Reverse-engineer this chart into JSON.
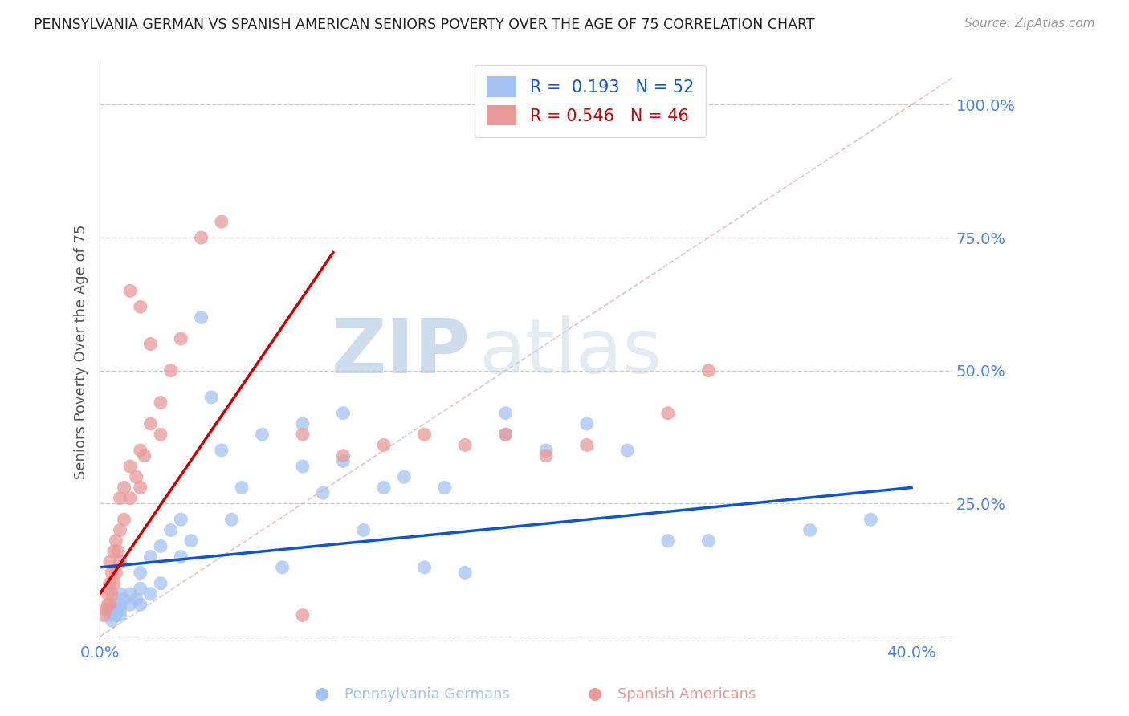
{
  "title": "PENNSYLVANIA GERMAN VS SPANISH AMERICAN SENIORS POVERTY OVER THE AGE OF 75 CORRELATION CHART",
  "source": "Source: ZipAtlas.com",
  "ylabel": "Seniors Poverty Over the Age of 75",
  "xlim": [
    0.0,
    0.42
  ],
  "ylim": [
    -0.01,
    1.08
  ],
  "ytick_vals": [
    0.0,
    0.25,
    0.5,
    0.75,
    1.0
  ],
  "ytick_labels": [
    "",
    "25.0%",
    "50.0%",
    "75.0%",
    "100.0%"
  ],
  "xtick_vals": [
    0.0,
    0.1,
    0.2,
    0.3,
    0.4
  ],
  "xtick_labels": [
    "0.0%",
    "",
    "",
    "",
    "40.0%"
  ],
  "blue_R": "0.193",
  "blue_N": "52",
  "pink_R": "0.546",
  "pink_N": "46",
  "blue_color": "#a4c2f4",
  "pink_color": "#ea9999",
  "blue_line_color": "#1155cc",
  "pink_line_color": "#cc0000",
  "bg_color": "#ffffff",
  "grid_color": "#cccccc",
  "title_color": "#222222",
  "tick_label_color": "#4a86e8",
  "blue_scatter": [
    [
      0.005,
      0.04
    ],
    [
      0.005,
      0.05
    ],
    [
      0.006,
      0.03
    ],
    [
      0.007,
      0.06
    ],
    [
      0.008,
      0.04
    ],
    [
      0.009,
      0.05
    ],
    [
      0.01,
      0.06
    ],
    [
      0.01,
      0.08
    ],
    [
      0.01,
      0.05
    ],
    [
      0.01,
      0.04
    ],
    [
      0.012,
      0.07
    ],
    [
      0.015,
      0.06
    ],
    [
      0.015,
      0.08
    ],
    [
      0.018,
      0.07
    ],
    [
      0.02,
      0.06
    ],
    [
      0.02,
      0.09
    ],
    [
      0.02,
      0.12
    ],
    [
      0.025,
      0.08
    ],
    [
      0.025,
      0.15
    ],
    [
      0.03,
      0.1
    ],
    [
      0.03,
      0.17
    ],
    [
      0.035,
      0.2
    ],
    [
      0.04,
      0.15
    ],
    [
      0.04,
      0.22
    ],
    [
      0.045,
      0.18
    ],
    [
      0.05,
      0.6
    ],
    [
      0.055,
      0.45
    ],
    [
      0.06,
      0.35
    ],
    [
      0.065,
      0.22
    ],
    [
      0.07,
      0.28
    ],
    [
      0.08,
      0.38
    ],
    [
      0.09,
      0.13
    ],
    [
      0.1,
      0.4
    ],
    [
      0.1,
      0.32
    ],
    [
      0.11,
      0.27
    ],
    [
      0.12,
      0.42
    ],
    [
      0.12,
      0.33
    ],
    [
      0.13,
      0.2
    ],
    [
      0.14,
      0.28
    ],
    [
      0.15,
      0.3
    ],
    [
      0.16,
      0.13
    ],
    [
      0.17,
      0.28
    ],
    [
      0.18,
      0.12
    ],
    [
      0.2,
      0.42
    ],
    [
      0.2,
      0.38
    ],
    [
      0.22,
      0.35
    ],
    [
      0.24,
      0.4
    ],
    [
      0.26,
      0.35
    ],
    [
      0.28,
      0.18
    ],
    [
      0.3,
      0.18
    ],
    [
      0.35,
      0.2
    ],
    [
      0.38,
      0.22
    ]
  ],
  "pink_scatter": [
    [
      0.002,
      0.04
    ],
    [
      0.003,
      0.05
    ],
    [
      0.004,
      0.06
    ],
    [
      0.004,
      0.08
    ],
    [
      0.005,
      0.06
    ],
    [
      0.005,
      0.1
    ],
    [
      0.005,
      0.14
    ],
    [
      0.006,
      0.08
    ],
    [
      0.006,
      0.12
    ],
    [
      0.007,
      0.1
    ],
    [
      0.007,
      0.16
    ],
    [
      0.008,
      0.12
    ],
    [
      0.008,
      0.18
    ],
    [
      0.009,
      0.16
    ],
    [
      0.01,
      0.14
    ],
    [
      0.01,
      0.2
    ],
    [
      0.01,
      0.26
    ],
    [
      0.012,
      0.22
    ],
    [
      0.012,
      0.28
    ],
    [
      0.015,
      0.26
    ],
    [
      0.015,
      0.32
    ],
    [
      0.018,
      0.3
    ],
    [
      0.02,
      0.28
    ],
    [
      0.02,
      0.35
    ],
    [
      0.022,
      0.34
    ],
    [
      0.025,
      0.4
    ],
    [
      0.03,
      0.38
    ],
    [
      0.03,
      0.44
    ],
    [
      0.035,
      0.5
    ],
    [
      0.04,
      0.56
    ],
    [
      0.05,
      0.75
    ],
    [
      0.06,
      0.78
    ],
    [
      0.02,
      0.62
    ],
    [
      0.025,
      0.55
    ],
    [
      0.015,
      0.65
    ],
    [
      0.1,
      0.38
    ],
    [
      0.12,
      0.34
    ],
    [
      0.14,
      0.36
    ],
    [
      0.16,
      0.38
    ],
    [
      0.18,
      0.36
    ],
    [
      0.2,
      0.38
    ],
    [
      0.22,
      0.34
    ],
    [
      0.24,
      0.36
    ],
    [
      0.28,
      0.42
    ],
    [
      0.1,
      0.04
    ],
    [
      0.3,
      0.5
    ]
  ]
}
